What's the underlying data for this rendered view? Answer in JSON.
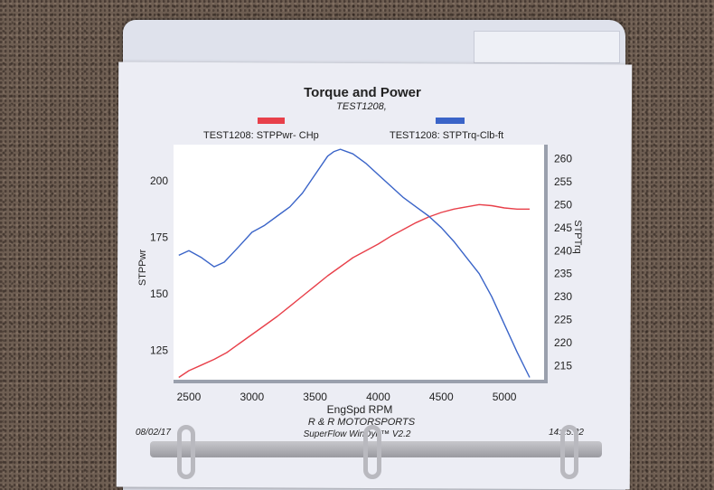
{
  "chart_data": {
    "type": "line",
    "title": "Torque and Power",
    "subtitle": "TEST1208,",
    "xlabel": "EngSpd  RPM",
    "ylabel_left": "STPPwr",
    "ylabel_right": "STPTrq",
    "xlim": [
      2400,
      5300
    ],
    "ylim_left": [
      112,
      216
    ],
    "ylim_right": [
      212,
      263
    ],
    "x_ticks": [
      2500,
      3000,
      3500,
      4000,
      4500,
      5000
    ],
    "y_left_ticks": [
      125,
      150,
      175,
      200
    ],
    "y_right_ticks": [
      215,
      220,
      225,
      230,
      235,
      240,
      245,
      250,
      255,
      260
    ],
    "legend_placement": "top",
    "grid": false,
    "series": [
      {
        "name": "TEST1208: STPPwr- CHp",
        "axis": "left",
        "color": "#e8404a",
        "x": [
          2420,
          2500,
          2600,
          2700,
          2800,
          2900,
          3000,
          3100,
          3200,
          3300,
          3400,
          3500,
          3600,
          3700,
          3800,
          3900,
          4000,
          4100,
          4200,
          4300,
          4400,
          4500,
          4600,
          4700,
          4800,
          4900,
          5000,
          5100,
          5200
        ],
        "values": [
          113,
          116,
          118.5,
          121,
          124,
          128,
          132,
          136,
          140,
          144.5,
          149,
          153.5,
          158,
          162,
          166,
          169,
          172,
          175.5,
          178.5,
          181.5,
          184,
          186,
          187.5,
          188.5,
          189.5,
          189,
          188,
          187.5,
          187.5
        ]
      },
      {
        "name": "TEST1208: STPTrq-Clb-ft",
        "axis": "right",
        "color": "#3a64c8",
        "x": [
          2420,
          2500,
          2600,
          2700,
          2780,
          2900,
          3000,
          3100,
          3200,
          3300,
          3400,
          3500,
          3600,
          3650,
          3700,
          3800,
          3900,
          4000,
          4100,
          4200,
          4300,
          4400,
          4500,
          4600,
          4700,
          4800,
          4900,
          5000,
          5100,
          5200
        ],
        "values": [
          239,
          240,
          238.5,
          236.5,
          237.5,
          241,
          244,
          245.5,
          247.5,
          249.5,
          252.5,
          256.5,
          260.5,
          261.5,
          262,
          261,
          259,
          256.5,
          254,
          251.5,
          249.5,
          247.5,
          245,
          242,
          238.5,
          235,
          230,
          224,
          218,
          212.5
        ]
      }
    ]
  },
  "footer": {
    "date": "08/02/17",
    "time": "14:25:22",
    "company": "R & R MOTORSPORTS",
    "software": "SuperFlow WinDyn™ V2.2"
  }
}
